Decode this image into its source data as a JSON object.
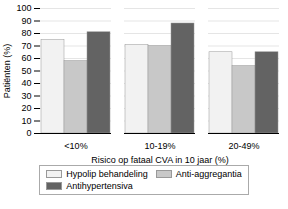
{
  "chart_data": {
    "type": "bar",
    "xlabel": "Risico op fataal CVA in 10 jaar (%)",
    "ylabel": "Patiënten (%)",
    "categories": [
      "<10%",
      "10-19%",
      "20-49%"
    ],
    "series": [
      {
        "name": "Hypolip behandeling",
        "color": "#f2f2f2",
        "values": [
          75,
          71,
          65
        ]
      },
      {
        "name": "Anti-aggregantia",
        "color": "#c8c8c8",
        "values": [
          58,
          70,
          54
        ]
      },
      {
        "name": "Antihypertensiva",
        "color": "#636363",
        "values": [
          81,
          88,
          65
        ]
      }
    ],
    "ylim": [
      0,
      100
    ],
    "yticks": [
      0,
      10,
      20,
      30,
      40,
      50,
      60,
      70,
      80,
      90,
      100
    ],
    "grid": true,
    "legend": "bottom"
  }
}
